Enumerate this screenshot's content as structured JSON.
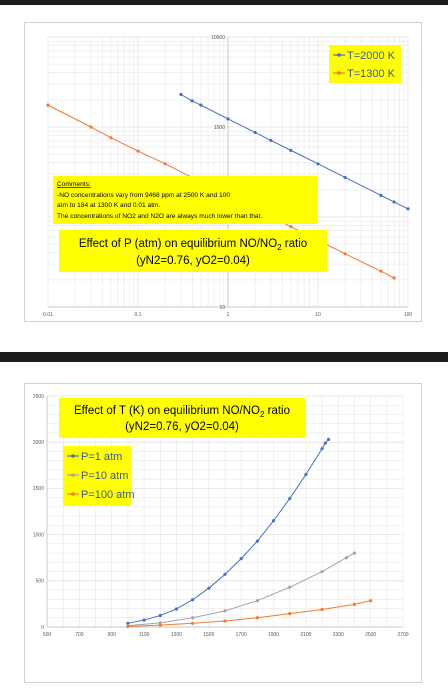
{
  "colors": {
    "blue": "#4472c4",
    "orange": "#ed7d31",
    "gray": "#a5a5a5",
    "highlight": "#ffff00",
    "grid": "#e3e3e3"
  },
  "chart_data": [
    {
      "type": "line",
      "title_line1": "Effect of P (atm) on equilibrium NO/NO",
      "title_sub": "2",
      "title_line1_end": " ratio",
      "title_line2": "(yN2=0.76, yO2=0.04)",
      "xscale": "log",
      "yscale": "log",
      "xlim": [
        0.01,
        100
      ],
      "ylim": [
        10,
        10000
      ],
      "x_tick_labels": [
        "0.01",
        "0.1",
        "1",
        "10",
        "100"
      ],
      "y_tick_labels": [
        "10",
        "100",
        "1000",
        "10000"
      ],
      "grid": true,
      "legend_position": "top-right",
      "comments": [
        "Comments:",
        "-NO concentrations vary  from 9468 ppm at 2500 K and 100",
        "atm to 184 at 1300 K and 0.01 atm.",
        "The concentrations of NO2 and N2O are always much lower than that."
      ],
      "series": [
        {
          "name": "T=2000 K",
          "color": "#4472c4",
          "x": [
            0.3,
            0.4,
            0.5,
            1,
            2,
            3,
            5,
            10,
            20,
            50,
            70,
            100
          ],
          "y": [
            2300,
            1950,
            1750,
            1230,
            870,
            710,
            550,
            390,
            275,
            174,
            147,
            123
          ]
        },
        {
          "name": "T=1300 K",
          "color": "#ed7d31",
          "x": [
            0.01,
            0.03,
            0.05,
            0.1,
            0.2,
            0.5,
            1,
            2,
            5,
            10,
            20,
            50,
            70
          ],
          "y": [
            1750,
            1000,
            760,
            540,
            390,
            245,
            175,
            123,
            78,
            55,
            39,
            25,
            21
          ]
        }
      ]
    },
    {
      "type": "line",
      "title_line1": "Effect of T (K) on equilibrium NO/NO",
      "title_sub": "2",
      "title_line1_end": " ratio",
      "title_line2": "(yN2=0.76, yO2=0.04)",
      "xlim": [
        500,
        2700
      ],
      "ylim": [
        0,
        2500
      ],
      "x_ticks": [
        500,
        700,
        900,
        1100,
        1300,
        1500,
        1700,
        1900,
        2100,
        2300,
        2500,
        2700
      ],
      "y_ticks": [
        0,
        500,
        1000,
        1500,
        2000,
        2500
      ],
      "grid": true,
      "legend_position": "top-left",
      "series": [
        {
          "name": "P=1 atm",
          "color": "#4472c4",
          "x": [
            1000,
            1100,
            1200,
            1300,
            1400,
            1500,
            1600,
            1700,
            1800,
            1900,
            2000,
            2100,
            2200,
            2220,
            2240
          ],
          "y": [
            40,
            75,
            125,
            195,
            295,
            420,
            570,
            740,
            930,
            1150,
            1390,
            1650,
            1930,
            1990,
            2030
          ]
        },
        {
          "name": "P=10 atm",
          "color": "#a5a5a5",
          "x": [
            1000,
            1200,
            1400,
            1600,
            1800,
            2000,
            2200,
            2350,
            2400
          ],
          "y": [
            15,
            45,
            100,
            175,
            285,
            430,
            600,
            750,
            800
          ]
        },
        {
          "name": "P=100 atm",
          "color": "#ed7d31",
          "x": [
            1000,
            1200,
            1400,
            1600,
            1800,
            2000,
            2200,
            2400,
            2500
          ],
          "y": [
            5,
            20,
            40,
            65,
            100,
            145,
            190,
            245,
            285
          ]
        }
      ]
    }
  ]
}
